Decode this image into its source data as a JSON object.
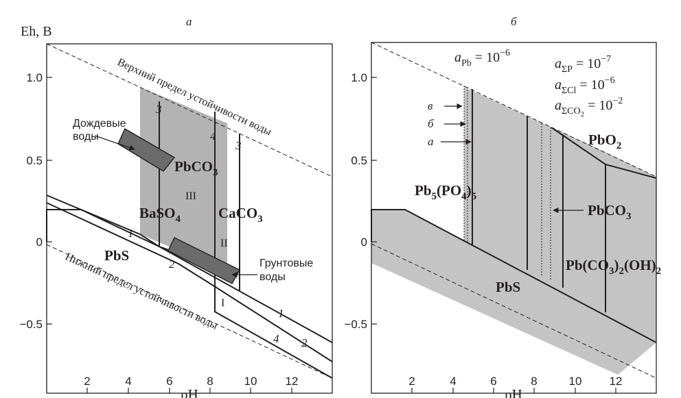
{
  "panels": [
    {
      "letter": "а",
      "ylabel": "Eh, В",
      "xlabel": "pH",
      "xlim": [
        0,
        14
      ],
      "ylim": [
        -0.75,
        1.25
      ],
      "x_ticks": [
        "2",
        "4",
        "6",
        "8",
        "10",
        "12"
      ],
      "y_ticks": [
        "1.0",
        "0.5",
        "0",
        "−0.5"
      ],
      "upper_limit_label": "Верхний предел устойчивости воды",
      "lower_limit_label": "Нижний предел устойчивости воды",
      "phases": {
        "pbs": "PbS",
        "baso4_base": "BaSO",
        "baso4_sub": "4",
        "pbco3_base": "PbCO",
        "pbco3_sub": "3",
        "caco3_base": "CaCO",
        "caco3_sub": "3"
      },
      "regions": {
        "r1": "I",
        "r2": "II",
        "r3": "III"
      },
      "curve_numbers": {
        "n1a": "1",
        "n1b": "1",
        "n2": "2",
        "n3a": "3",
        "n3b": "3",
        "n4a": "4",
        "n4b": "4"
      },
      "rain_label_1": "Дождевые",
      "rain_label_2": "воды",
      "ground_label_1": "Грунтовые",
      "ground_label_2": "воды"
    },
    {
      "letter": "б",
      "xlabel": "pH",
      "xlim": [
        0,
        14
      ],
      "ylim": [
        -0.75,
        1.25
      ],
      "x_ticks": [
        "2",
        "4",
        "6",
        "8",
        "10",
        "12"
      ],
      "y_ticks": [
        "1.0",
        "0.5",
        "0",
        "−0.5"
      ],
      "activities": [
        {
          "base": "a",
          "sub": "Pb",
          "value": " = 10",
          "exp": "−6"
        },
        {
          "base": "a",
          "sub": "ΣP",
          "value": " = 10",
          "exp": "−7"
        },
        {
          "base": "a",
          "sub": "ΣCl",
          "value": " = 10",
          "exp": "−6"
        },
        {
          "base": "a",
          "sub": "ΣCO",
          "sub2": "2",
          "value": " = 10",
          "exp": "−2"
        }
      ],
      "phases": {
        "pbs": "PbS",
        "pbo2_base": "PbO",
        "pbo2_sub": "2",
        "pbco3_base": "PbCO",
        "pbco3_sub": "3",
        "pyro_a": "Pb",
        "pyro_b": "5",
        "pyro_c": "(PO",
        "pyro_d": "4",
        "pyro_e": ")",
        "pyro_f": "5",
        "hc_a": "Pb(CO",
        "hc_b": "3",
        "hc_c": ")",
        "hc_d": "2",
        "hc_e": "(OH)",
        "hc_f": "2"
      },
      "line_letters": [
        "в",
        "б",
        "а"
      ]
    }
  ]
}
